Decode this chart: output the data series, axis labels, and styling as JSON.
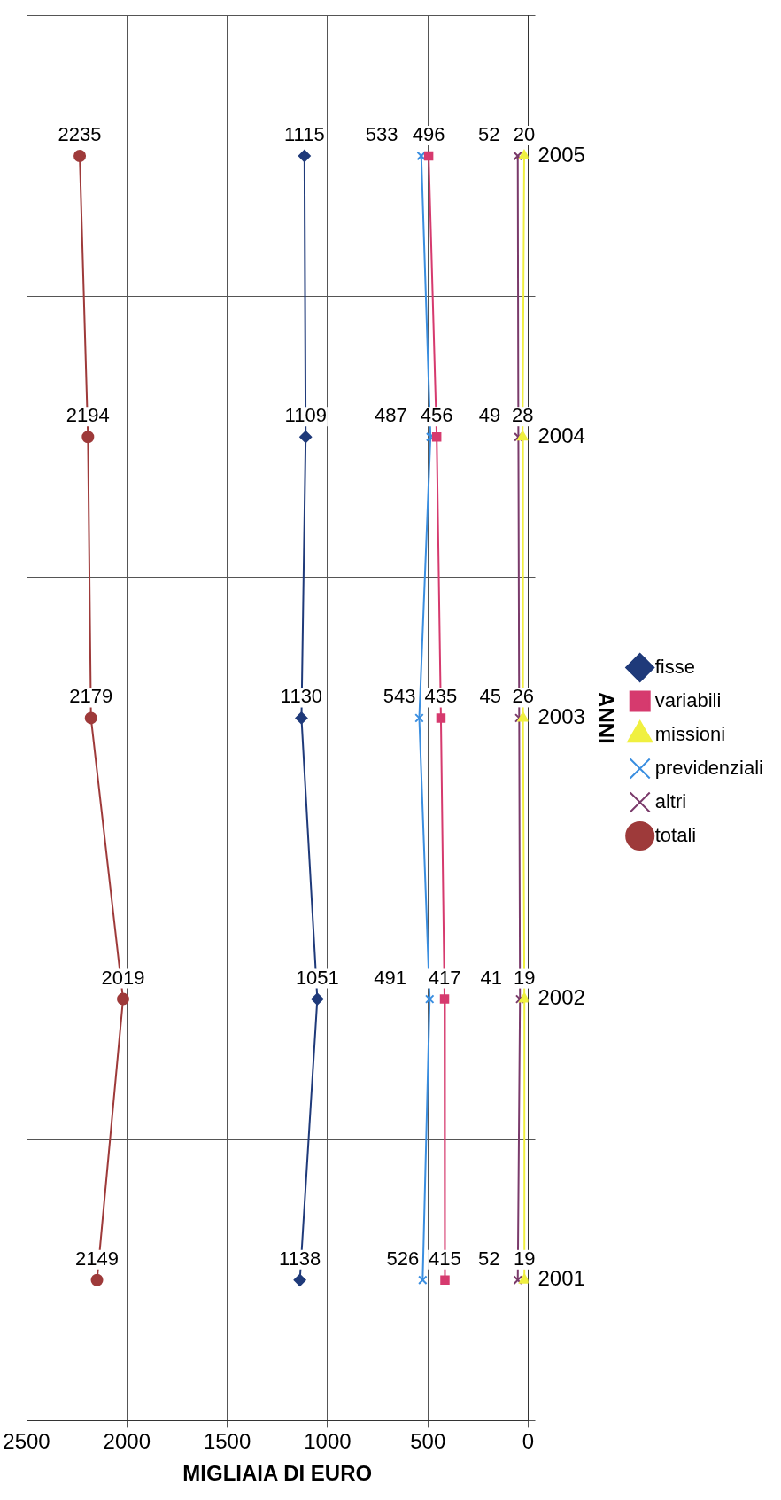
{
  "chart_data": {
    "type": "line",
    "orientation": "horizontal",
    "xlabel": "MIGLIAIA DI EURO",
    "ylabel": "ANNI",
    "categories": [
      "2005",
      "2004",
      "2003",
      "2002",
      "2001"
    ],
    "series": [
      {
        "name": "fisse",
        "color": "#1f3a7a",
        "marker": "diamond",
        "values": [
          1115,
          1109,
          1130,
          1051,
          1138
        ]
      },
      {
        "name": "variabili",
        "color": "#d63a6e",
        "marker": "square",
        "values": [
          496,
          456,
          435,
          417,
          415
        ]
      },
      {
        "name": "missioni",
        "color": "#f0f040",
        "marker": "triangle",
        "values": [
          20,
          28,
          26,
          19,
          19
        ]
      },
      {
        "name": "previdenziali",
        "color": "#3a8ee0",
        "marker": "cross",
        "values": [
          533,
          487,
          543,
          491,
          526
        ]
      },
      {
        "name": "altri",
        "color": "#7a3a6a",
        "marker": "cross",
        "values": [
          52,
          49,
          45,
          41,
          52
        ]
      },
      {
        "name": "totali",
        "color": "#9e3a3a",
        "marker": "circle",
        "values": [
          2235,
          2194,
          2179,
          2019,
          2149
        ]
      }
    ],
    "xlim": [
      2500,
      0
    ],
    "xticks": [
      0,
      500,
      1000,
      1500,
      2000,
      2500
    ],
    "grid": true,
    "legend": "right",
    "data_labels": true
  }
}
